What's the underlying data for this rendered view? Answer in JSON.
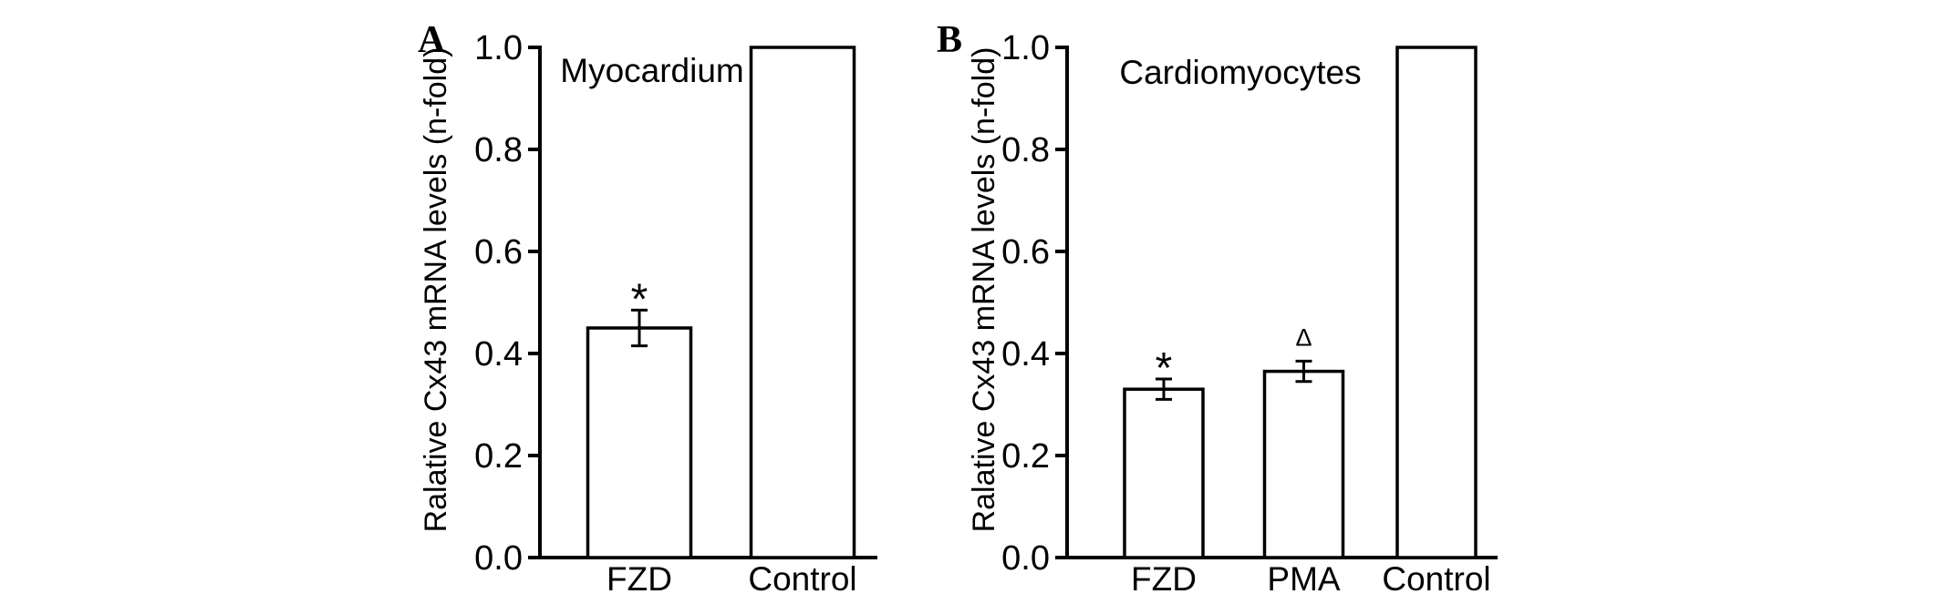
{
  "figure": {
    "background_color": "#ffffff",
    "ink_color": "#000000",
    "bar_fill_color": "#ffffff",
    "description": "Two-panel bar figure of relative Cx43 mRNA levels"
  },
  "chart_data": [
    {
      "type": "bar",
      "panel_label": "A",
      "title": "Myocardium",
      "xlabel": "",
      "ylabel": "Ralative Cx43 mRNA levels (n-fold)",
      "categories": [
        "FZD",
        "Control"
      ],
      "values": [
        0.45,
        1.0
      ],
      "errors": [
        0.035,
        0
      ],
      "annotations": [
        "*",
        ""
      ],
      "y_ticks": [
        "1.0",
        "0.8",
        "0.6",
        "0.4",
        "0.2",
        "0.0"
      ],
      "y_tick_values": [
        1.0,
        0.8,
        0.6,
        0.4,
        0.2,
        0.0
      ],
      "ylim": [
        0,
        1.0
      ],
      "grid": false,
      "legend": "none"
    },
    {
      "type": "bar",
      "panel_label": "B",
      "title": "Cardiomyocytes",
      "xlabel": "",
      "ylabel": "Ralative Cx43 mRNA levels (n-fold)",
      "categories": [
        "FZD",
        "PMA",
        "Control"
      ],
      "values": [
        0.33,
        0.365,
        1.0
      ],
      "errors": [
        0.02,
        0.02,
        0
      ],
      "annotations": [
        "*",
        "Δ",
        ""
      ],
      "y_ticks": [
        "1.0",
        "0.8",
        "0.6",
        "0.4",
        "0.2",
        "0.0"
      ],
      "y_tick_values": [
        1.0,
        0.8,
        0.6,
        0.4,
        0.2,
        0.0
      ],
      "ylim": [
        0,
        1.0
      ],
      "grid": false,
      "legend": "none"
    }
  ]
}
